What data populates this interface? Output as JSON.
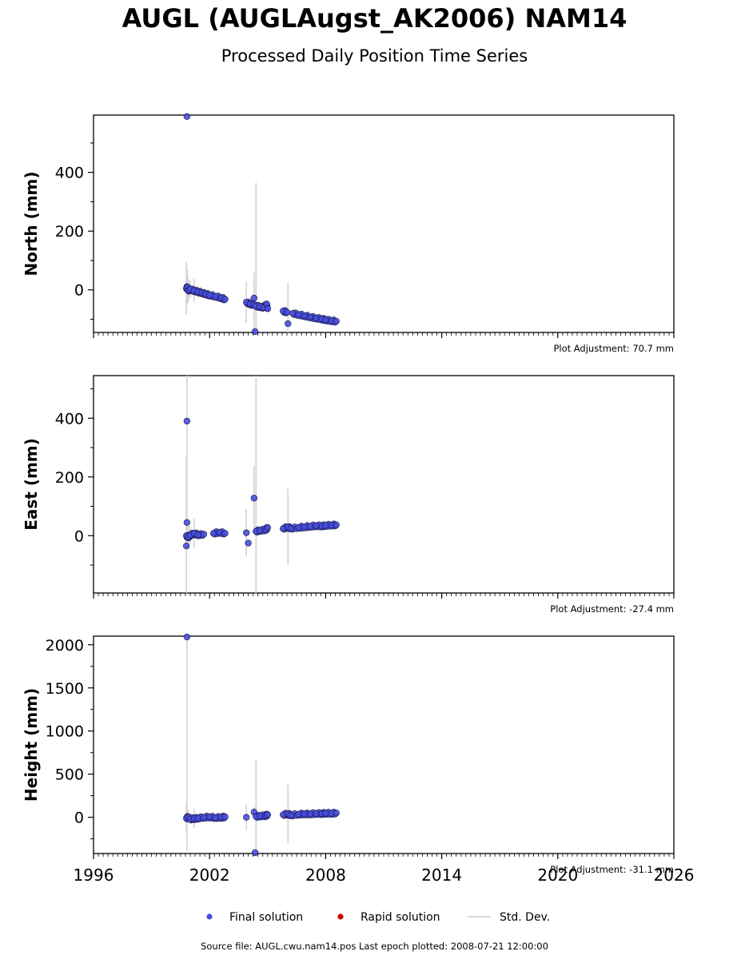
{
  "title": "AUGL (AUGLAugst_AK2006) NAM14",
  "subtitle": "Processed Daily Position Time Series",
  "footer": "Source file: AUGL.cwu.nam14.pos  Last epoch plotted: 2008-07-21 12:00:00",
  "colors": {
    "final": "#4a4fe0",
    "final_edge": "#1a1a55",
    "rapid": "#d40000",
    "stddev": "#d3d3d3"
  },
  "legend": [
    {
      "label": "Final solution",
      "marker": "dot",
      "color": "#4a4fe0"
    },
    {
      "label": "Rapid solution",
      "marker": "dot",
      "color": "#d40000"
    },
    {
      "label": "Std. Dev.",
      "marker": "line",
      "color": "#d3d3d3"
    }
  ],
  "chart_data": {
    "type": "scatter",
    "x_axis": {
      "label": "",
      "range": [
        1996,
        2026
      ],
      "ticks": [
        "1996",
        "2002",
        "2008",
        "2014",
        "2020",
        "2026"
      ],
      "minor_tick_step_years": 0.25
    },
    "grid": false,
    "legend_position": "bottom-center",
    "panels": [
      {
        "ylabel": "North (mm)",
        "ylim": [
          -145,
          595
        ],
        "ticks": [
          "0",
          "200",
          "400"
        ],
        "minor_tick_step": 100,
        "adjustment": "Plot Adjustment: 70.7 mm",
        "series": [
          {
            "x": 2000.83,
            "y": 590,
            "err": 0
          },
          {
            "x": 2000.8,
            "y": 5,
            "err": 90
          },
          {
            "x": 2000.85,
            "y": 10,
            "err": 60
          },
          {
            "x": 2000.9,
            "y": -2,
            "err": 40
          },
          {
            "x": 2001.0,
            "y": 2,
            "err": 30
          },
          {
            "x": 2001.2,
            "y": -3,
            "err": 40
          },
          {
            "x": 2001.4,
            "y": -6,
            "err": 20
          },
          {
            "x": 2001.6,
            "y": -10,
            "err": 10
          },
          {
            "x": 2001.8,
            "y": -14,
            "err": 10
          },
          {
            "x": 2002.0,
            "y": -18,
            "err": 8
          },
          {
            "x": 2002.3,
            "y": -22,
            "err": 8
          },
          {
            "x": 2002.6,
            "y": -27,
            "err": 8
          },
          {
            "x": 2002.8,
            "y": -32,
            "err": 8
          },
          {
            "x": 2003.9,
            "y": -42,
            "err": 70
          },
          {
            "x": 2004.1,
            "y": -48,
            "err": 20
          },
          {
            "x": 2004.3,
            "y": -50,
            "err": 110
          },
          {
            "x": 2004.3,
            "y": -28,
            "err": 0
          },
          {
            "x": 2004.35,
            "y": -142,
            "err": 0
          },
          {
            "x": 2004.4,
            "y": -55,
            "err": 420
          },
          {
            "x": 2004.6,
            "y": -57,
            "err": 10
          },
          {
            "x": 2004.8,
            "y": -60,
            "err": 10
          },
          {
            "x": 2004.95,
            "y": -48,
            "err": 10
          },
          {
            "x": 2005.0,
            "y": -64,
            "err": 10
          },
          {
            "x": 2005.8,
            "y": -72,
            "err": 10
          },
          {
            "x": 2006.0,
            "y": -76,
            "err": 10
          },
          {
            "x": 2006.05,
            "y": -115,
            "err": 140
          },
          {
            "x": 2006.3,
            "y": -80,
            "err": 8
          },
          {
            "x": 2006.6,
            "y": -84,
            "err": 8
          },
          {
            "x": 2006.9,
            "y": -88,
            "err": 8
          },
          {
            "x": 2007.2,
            "y": -92,
            "err": 8
          },
          {
            "x": 2007.5,
            "y": -96,
            "err": 8
          },
          {
            "x": 2007.8,
            "y": -99,
            "err": 8
          },
          {
            "x": 2008.0,
            "y": -102,
            "err": 8
          },
          {
            "x": 2008.3,
            "y": -105,
            "err": 8
          },
          {
            "x": 2008.55,
            "y": -107,
            "err": 8
          }
        ]
      },
      {
        "ylabel": "East (mm)",
        "ylim": [
          -195,
          545
        ],
        "ticks": [
          "0",
          "200",
          "400"
        ],
        "minor_tick_step": 100,
        "adjustment": "Plot Adjustment: -27.4 mm",
        "series": [
          {
            "x": 2000.83,
            "y": 390,
            "err": 400
          },
          {
            "x": 2000.83,
            "y": 45,
            "err": 0
          },
          {
            "x": 2000.8,
            "y": -35,
            "err": 0
          },
          {
            "x": 2000.8,
            "y": 0,
            "err": 270
          },
          {
            "x": 2000.9,
            "y": -5,
            "err": 40
          },
          {
            "x": 2001.0,
            "y": 2,
            "err": 30
          },
          {
            "x": 2001.2,
            "y": 8,
            "err": 50
          },
          {
            "x": 2001.4,
            "y": 3,
            "err": 20
          },
          {
            "x": 2001.7,
            "y": 5,
            "err": 10
          },
          {
            "x": 2002.2,
            "y": 8,
            "err": 10
          },
          {
            "x": 2002.5,
            "y": 12,
            "err": 10
          },
          {
            "x": 2002.8,
            "y": 8,
            "err": 10
          },
          {
            "x": 2003.9,
            "y": 10,
            "err": 80
          },
          {
            "x": 2004.0,
            "y": -25,
            "err": 0
          },
          {
            "x": 2004.3,
            "y": 128,
            "err": 110
          },
          {
            "x": 2004.4,
            "y": 15,
            "err": 560
          },
          {
            "x": 2004.6,
            "y": 18,
            "err": 10
          },
          {
            "x": 2004.9,
            "y": 20,
            "err": 10
          },
          {
            "x": 2005.0,
            "y": 28,
            "err": 10
          },
          {
            "x": 2005.8,
            "y": 24,
            "err": 10
          },
          {
            "x": 2006.05,
            "y": 30,
            "err": 130
          },
          {
            "x": 2006.2,
            "y": 25,
            "err": 8
          },
          {
            "x": 2006.6,
            "y": 28,
            "err": 8
          },
          {
            "x": 2006.9,
            "y": 30,
            "err": 8
          },
          {
            "x": 2007.2,
            "y": 32,
            "err": 8
          },
          {
            "x": 2007.5,
            "y": 34,
            "err": 8
          },
          {
            "x": 2007.8,
            "y": 33,
            "err": 8
          },
          {
            "x": 2008.0,
            "y": 35,
            "err": 8
          },
          {
            "x": 2008.3,
            "y": 36,
            "err": 8
          },
          {
            "x": 2008.55,
            "y": 37,
            "err": 8
          }
        ]
      },
      {
        "ylabel": "Height (mm)",
        "ylim": [
          -420,
          2100
        ],
        "ticks": [
          "0",
          "500",
          "1000",
          "1500",
          "2000"
        ],
        "minor_tick_step": 250,
        "adjustment": "Plot Adjustment: -31.1 mm",
        "series": [
          {
            "x": 2000.83,
            "y": 2090,
            "err": 2480
          },
          {
            "x": 2000.8,
            "y": -10,
            "err": 170
          },
          {
            "x": 2000.9,
            "y": 5,
            "err": 80
          },
          {
            "x": 2001.0,
            "y": -20,
            "err": 60
          },
          {
            "x": 2001.2,
            "y": -15,
            "err": 110
          },
          {
            "x": 2001.4,
            "y": -10,
            "err": 40
          },
          {
            "x": 2001.7,
            "y": 0,
            "err": 30
          },
          {
            "x": 2002.0,
            "y": 5,
            "err": 20
          },
          {
            "x": 2002.3,
            "y": -5,
            "err": 20
          },
          {
            "x": 2002.6,
            "y": 0,
            "err": 20
          },
          {
            "x": 2002.8,
            "y": 5,
            "err": 20
          },
          {
            "x": 2003.9,
            "y": 0,
            "err": 150
          },
          {
            "x": 2004.3,
            "y": 60,
            "err": 60
          },
          {
            "x": 2004.35,
            "y": -420,
            "err": 0
          },
          {
            "x": 2004.4,
            "y": 10,
            "err": 660
          },
          {
            "x": 2004.6,
            "y": 15,
            "err": 50
          },
          {
            "x": 2004.9,
            "y": 20,
            "err": 60
          },
          {
            "x": 2005.0,
            "y": 30,
            "err": 30
          },
          {
            "x": 2005.8,
            "y": 30,
            "err": 30
          },
          {
            "x": 2006.05,
            "y": 40,
            "err": 340
          },
          {
            "x": 2006.2,
            "y": 25,
            "err": 20
          },
          {
            "x": 2006.6,
            "y": 35,
            "err": 20
          },
          {
            "x": 2006.9,
            "y": 40,
            "err": 20
          },
          {
            "x": 2007.2,
            "y": 38,
            "err": 20
          },
          {
            "x": 2007.5,
            "y": 45,
            "err": 20
          },
          {
            "x": 2007.8,
            "y": 42,
            "err": 20
          },
          {
            "x": 2008.0,
            "y": 48,
            "err": 20
          },
          {
            "x": 2008.3,
            "y": 45,
            "err": 20
          },
          {
            "x": 2008.55,
            "y": 50,
            "err": 20
          }
        ]
      }
    ]
  }
}
